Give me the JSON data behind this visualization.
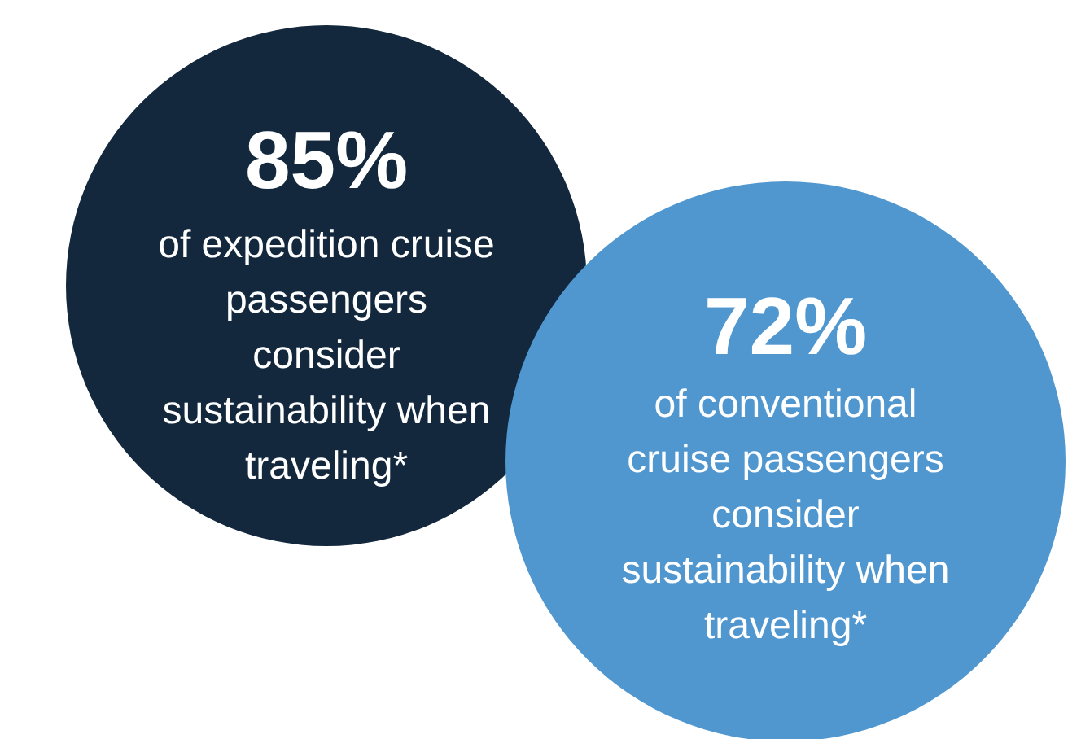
{
  "chart_data": {
    "type": "other",
    "categories": [
      "of expedition cruise\npassengers\nconsider\nsustainability when\ntraveling*",
      "of conventional\ncruise passengers\nconsider\nsustainability when\ntraveling*"
    ],
    "values": [
      85,
      72
    ],
    "value_labels": [
      "85%",
      "72%"
    ],
    "colors": [
      "#13283d",
      "#5097d0"
    ]
  }
}
